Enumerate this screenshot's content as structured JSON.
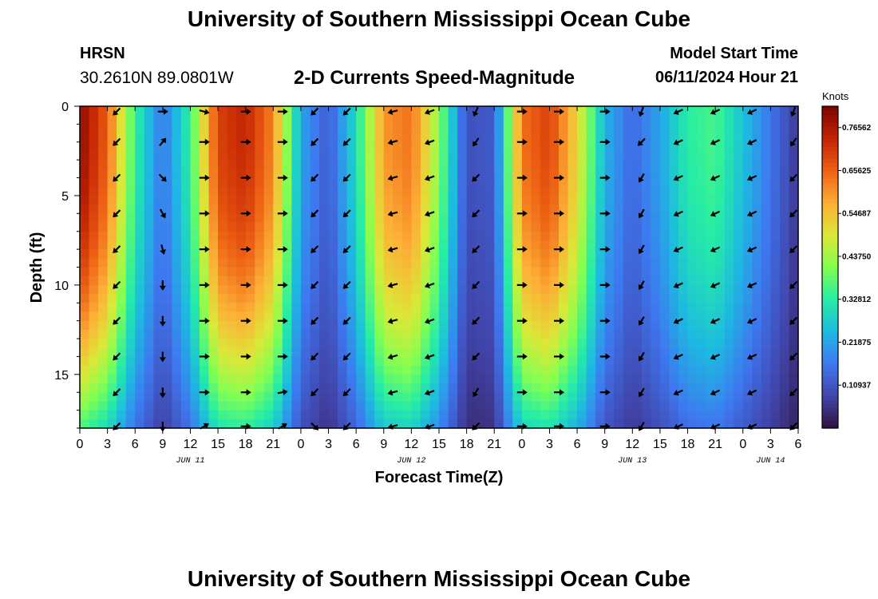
{
  "header": {
    "title": "University of Southern Mississippi Ocean Cube",
    "station": "HRSN",
    "coords": "30.2610N  89.0801W",
    "subtitle": "2-D Currents Speed-Magnitude",
    "start_label": "Model Start Time",
    "start_value": "06/11/2024 Hour 21"
  },
  "footer": {
    "title": "University of Southern Mississippi Ocean Cube"
  },
  "chart_data": {
    "type": "heatmap",
    "title": "2-D Currents Speed-Magnitude",
    "xlabel": "Forecast Time(Z)",
    "ylabel": "Depth (ft)",
    "x_range_hours": [
      0,
      78
    ],
    "ylim": [
      0,
      18
    ],
    "y_ticks": [
      0,
      5,
      10,
      15
    ],
    "x_ticks": [
      {
        "hour": 0,
        "label": "0"
      },
      {
        "hour": 3,
        "label": "3"
      },
      {
        "hour": 6,
        "label": "6"
      },
      {
        "hour": 9,
        "label": "9"
      },
      {
        "hour": 12,
        "label": "12"
      },
      {
        "hour": 15,
        "label": "15"
      },
      {
        "hour": 18,
        "label": "18"
      },
      {
        "hour": 21,
        "label": "21"
      },
      {
        "hour": 24,
        "label": "0"
      },
      {
        "hour": 27,
        "label": "3"
      },
      {
        "hour": 30,
        "label": "6"
      },
      {
        "hour": 33,
        "label": "9"
      },
      {
        "hour": 36,
        "label": "12"
      },
      {
        "hour": 39,
        "label": "15"
      },
      {
        "hour": 42,
        "label": "18"
      },
      {
        "hour": 45,
        "label": "21"
      },
      {
        "hour": 48,
        "label": "0"
      },
      {
        "hour": 51,
        "label": "3"
      },
      {
        "hour": 54,
        "label": "6"
      },
      {
        "hour": 57,
        "label": "9"
      },
      {
        "hour": 60,
        "label": "12"
      },
      {
        "hour": 63,
        "label": "15"
      },
      {
        "hour": 66,
        "label": "18"
      },
      {
        "hour": 69,
        "label": "21"
      },
      {
        "hour": 72,
        "label": "0"
      },
      {
        "hour": 75,
        "label": "3"
      },
      {
        "hour": 78,
        "label": "6"
      }
    ],
    "date_labels": [
      {
        "hour": 12,
        "label": "JUN 11"
      },
      {
        "hour": 36,
        "label": "JUN 12"
      },
      {
        "hour": 60,
        "label": "JUN 13"
      },
      {
        "hour": 75,
        "label": "JUN 14"
      }
    ],
    "colorbar": {
      "units": "Knots",
      "range": [
        0.0,
        0.82
      ],
      "tick_values": [
        0.10937,
        0.21875,
        0.32812,
        0.4375,
        0.54687,
        0.65625,
        0.76562
      ],
      "tick_labels": [
        "0.10937",
        "0.21875",
        "0.32812",
        "0.43750",
        "0.54687",
        "0.65625",
        "0.76562"
      ]
    },
    "surface_speed_series": {
      "hours": [
        0,
        3,
        6,
        9,
        12,
        15,
        18,
        21,
        24,
        27,
        30,
        33,
        36,
        39,
        42,
        45,
        48,
        51,
        54,
        57,
        60,
        63,
        66,
        69,
        72,
        75,
        78
      ],
      "knots": [
        0.8,
        0.66,
        0.34,
        0.16,
        0.34,
        0.7,
        0.74,
        0.62,
        0.22,
        0.12,
        0.3,
        0.6,
        0.64,
        0.42,
        0.1,
        0.12,
        0.64,
        0.7,
        0.52,
        0.24,
        0.14,
        0.22,
        0.33,
        0.36,
        0.26,
        0.16,
        0.06
      ]
    },
    "depth_falloff": {
      "surface_factor": 1.0,
      "bottom_factor": 0.45,
      "bottom_ft": 18
    },
    "arrow_depths_ft": [
      0.3,
      2,
      4,
      6,
      8,
      10,
      12,
      14,
      16,
      17.9
    ],
    "arrow_columns": [
      {
        "hour": 4,
        "dirs": [
          225,
          225,
          225,
          225,
          225,
          225,
          225,
          225,
          225,
          225
        ]
      },
      {
        "hour": 9,
        "dirs": [
          90,
          40,
          135,
          150,
          165,
          180,
          180,
          180,
          180,
          180
        ]
      },
      {
        "hour": 13.5,
        "dirs": [
          105,
          90,
          90,
          90,
          90,
          90,
          90,
          90,
          90,
          60
        ]
      },
      {
        "hour": 18,
        "dirs": [
          90,
          90,
          90,
          90,
          90,
          90,
          90,
          90,
          90,
          90
        ]
      },
      {
        "hour": 22,
        "dirs": [
          90,
          90,
          90,
          90,
          90,
          90,
          90,
          90,
          80,
          60
        ]
      },
      {
        "hour": 25.5,
        "dirs": [
          225,
          225,
          225,
          225,
          225,
          225,
          225,
          225,
          225,
          135
        ]
      },
      {
        "hour": 29,
        "dirs": [
          225,
          225,
          225,
          225,
          225,
          225,
          225,
          225,
          225,
          225
        ]
      },
      {
        "hour": 34,
        "dirs": [
          255,
          255,
          255,
          255,
          255,
          255,
          255,
          255,
          255,
          255
        ]
      },
      {
        "hour": 38,
        "dirs": [
          250,
          250,
          250,
          250,
          250,
          250,
          250,
          250,
          250,
          250
        ]
      },
      {
        "hour": 43,
        "dirs": [
          205,
          215,
          225,
          225,
          225,
          225,
          225,
          225,
          210,
          225
        ]
      },
      {
        "hour": 48,
        "dirs": [
          90,
          90,
          90,
          90,
          90,
          90,
          90,
          90,
          90,
          90
        ]
      },
      {
        "hour": 52,
        "dirs": [
          90,
          90,
          90,
          90,
          90,
          90,
          90,
          90,
          90,
          90
        ]
      },
      {
        "hour": 57,
        "dirs": [
          90,
          90,
          90,
          90,
          90,
          90,
          90,
          90,
          90,
          90
        ]
      },
      {
        "hour": 61,
        "dirs": [
          200,
          225,
          210,
          210,
          210,
          210,
          210,
          210,
          210,
          210
        ]
      },
      {
        "hour": 65,
        "dirs": [
          245,
          245,
          245,
          245,
          245,
          245,
          245,
          245,
          245,
          245
        ]
      },
      {
        "hour": 69,
        "dirs": [
          245,
          245,
          245,
          245,
          245,
          245,
          245,
          245,
          245,
          245
        ]
      },
      {
        "hour": 73,
        "dirs": [
          245,
          245,
          245,
          245,
          245,
          245,
          245,
          245,
          245,
          245
        ]
      },
      {
        "hour": 77.5,
        "dirs": [
          200,
          215,
          225,
          225,
          225,
          225,
          225,
          225,
          225,
          225
        ]
      }
    ]
  }
}
